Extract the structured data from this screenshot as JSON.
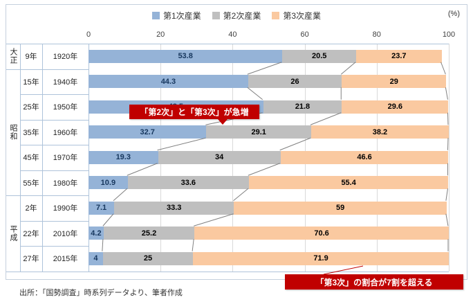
{
  "unit_label": "(%)",
  "source": "出所：「国勢調査」時系列データより、筆者作成",
  "callouts": [
    {
      "text": "「第2次」と「第3次」が急増"
    },
    {
      "text": "「第3次」の割合が7割を超える"
    }
  ],
  "colors": {
    "callout": "#C00000",
    "grid": "#D9D9D9",
    "table_line": "#AEC3DA",
    "connector": "#808080"
  },
  "chart_data": {
    "type": "bar",
    "orientation": "horizontal",
    "stacked": true,
    "unit": "%",
    "xlim": [
      0,
      100
    ],
    "axis_ticks": [
      0,
      20,
      40,
      60,
      80,
      100
    ],
    "legend_position": "top",
    "grid": true,
    "eras": [
      {
        "name": "大正",
        "rows": 1
      },
      {
        "name": "昭和",
        "rows": 5
      },
      {
        "name": "平成",
        "rows": 3
      }
    ],
    "categories": [
      {
        "era_year": "9年",
        "year": "1920年"
      },
      {
        "era_year": "15年",
        "year": "1940年"
      },
      {
        "era_year": "25年",
        "year": "1950年"
      },
      {
        "era_year": "35年",
        "year": "1960年"
      },
      {
        "era_year": "45年",
        "year": "1970年"
      },
      {
        "era_year": "55年",
        "year": "1980年"
      },
      {
        "era_year": "2年",
        "year": "1990年"
      },
      {
        "era_year": "22年",
        "year": "2010年"
      },
      {
        "era_year": "27年",
        "year": "2015年"
      }
    ],
    "series": [
      {
        "name": "第1次産業",
        "color": "#95B3D7",
        "label_color": "#17375E",
        "values": [
          53.8,
          44.3,
          48.5,
          32.7,
          19.3,
          10.9,
          7.1,
          4.2,
          4
        ]
      },
      {
        "name": "第2次産業",
        "color": "#BFBFBF",
        "label_color": "#000000",
        "values": [
          20.5,
          26,
          21.8,
          29.1,
          34,
          33.6,
          33.3,
          25.2,
          25
        ]
      },
      {
        "name": "第3次産業",
        "color": "#FAC9A0",
        "label_color": "#000000",
        "values": [
          23.7,
          29,
          29.6,
          38.2,
          46.6,
          55.4,
          59,
          70.6,
          71.9
        ]
      }
    ]
  }
}
